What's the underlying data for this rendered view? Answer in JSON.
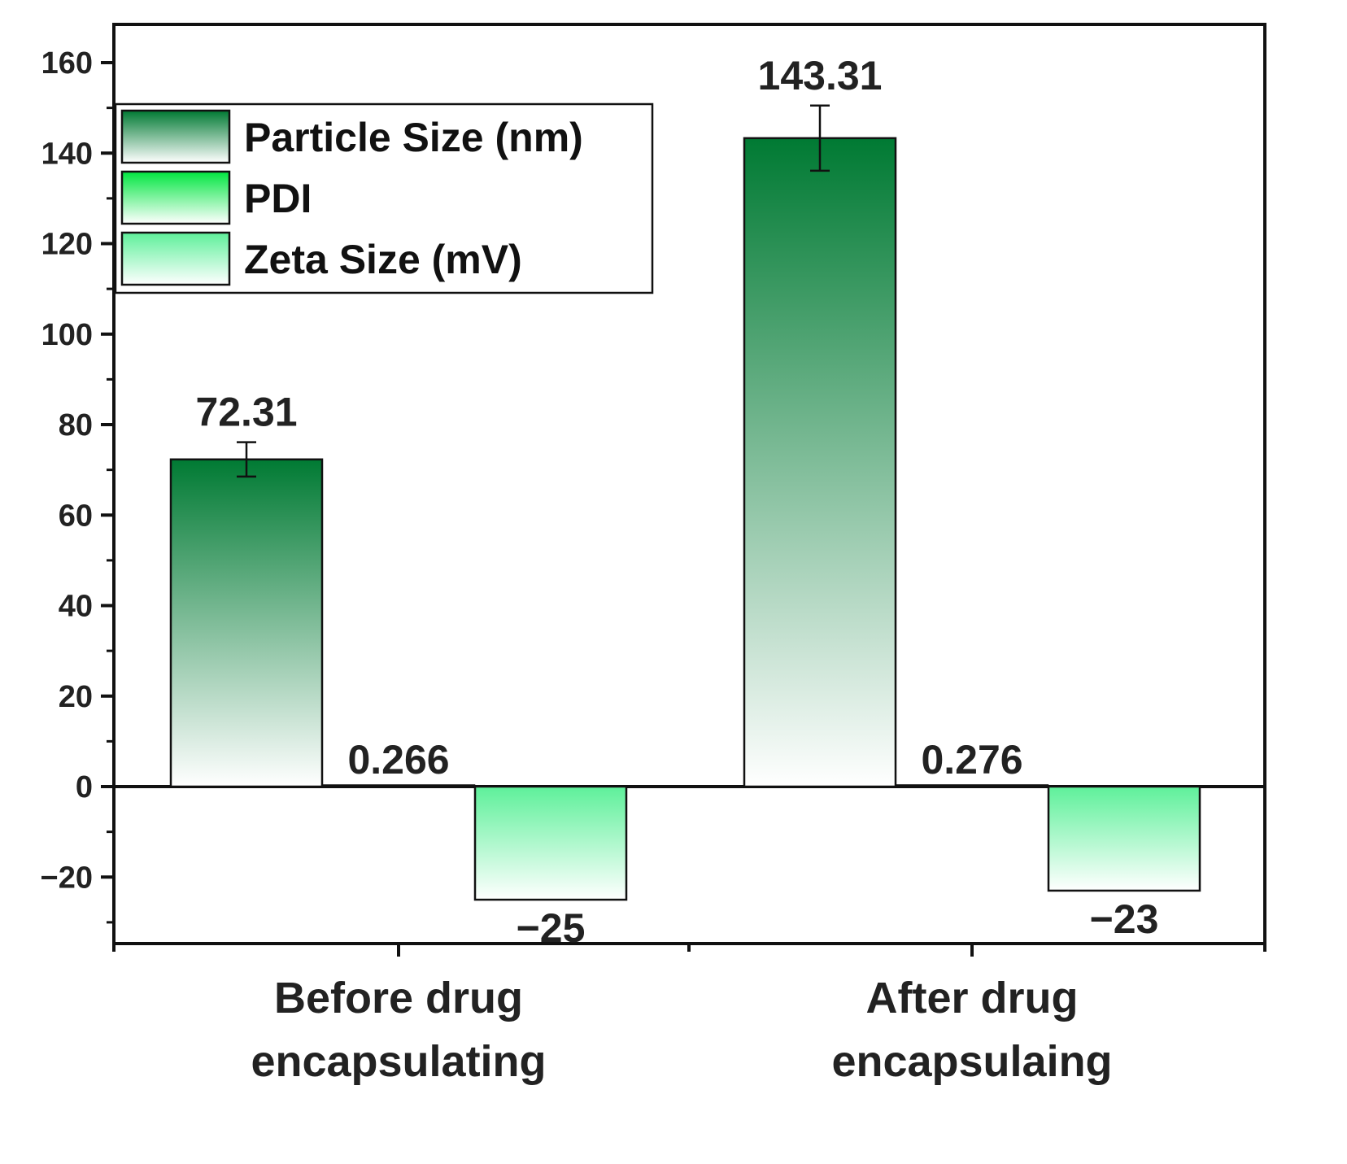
{
  "chart_data": {
    "type": "bar",
    "title": "",
    "xlabel": "",
    "ylabel": "",
    "ylim": [
      -35,
      170
    ],
    "yticks": [
      -20,
      0,
      20,
      40,
      60,
      80,
      100,
      120,
      140,
      160
    ],
    "ytick_labels": [
      "−20",
      "0",
      "20",
      "40",
      "60",
      "80",
      "100",
      "120",
      "140",
      "160"
    ],
    "categories": [
      [
        "Before drug",
        "encapsulating"
      ],
      [
        "After drug",
        "encapsulaing"
      ]
    ],
    "series": [
      {
        "name": "Particle Size (nm)",
        "values": [
          72.31,
          143.31
        ],
        "errors": [
          3.8,
          7.2
        ],
        "value_labels": [
          "72.31",
          "143.31"
        ],
        "color_top": "#007a33",
        "color_bottom": "#ffffff"
      },
      {
        "name": "PDI",
        "values": [
          0.266,
          0.276
        ],
        "value_labels": [
          "0.266",
          "0.276"
        ],
        "color_top": "#00e640",
        "color_bottom": "#ffffff"
      },
      {
        "name": "Zeta Size (mV)",
        "values": [
          -25,
          -23
        ],
        "value_labels": [
          "−25",
          "−23"
        ],
        "color_top": "#5ef09a",
        "color_bottom": "#ffffff"
      }
    ],
    "legend": {
      "position": "top-left"
    },
    "grid": false
  }
}
